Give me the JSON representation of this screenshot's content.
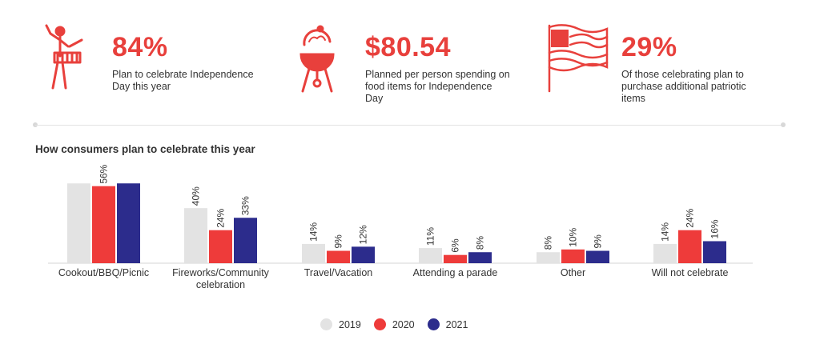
{
  "stats": [
    {
      "value": "84%",
      "desc_lines": [
        "Plan to celebrate Independence",
        "Day this year"
      ],
      "icon": "drummer-icon"
    },
    {
      "value": "$80.54",
      "desc_lines": [
        "Planned per person spending on",
        "food items for Independence",
        "Day"
      ],
      "icon": "grill-icon"
    },
    {
      "value": "29%",
      "desc_lines": [
        "Of those celebrating plan to",
        "purchase additional patriotic",
        "items"
      ],
      "icon": "flag-icon"
    }
  ],
  "colors": {
    "accent": "#e8403c",
    "y2019": "#e3e3e3",
    "y2020": "#ee3b3a",
    "y2021": "#2c2c8c"
  },
  "chart_data": {
    "type": "bar",
    "title": "How consumers plan to celebrate this year",
    "categories": [
      [
        "Cookout/BBQ/Picnic"
      ],
      [
        "Fireworks/Community",
        "celebration"
      ],
      [
        "Travel/Vacation"
      ],
      [
        "Attending a parade"
      ],
      [
        "Other"
      ],
      [
        "Will not celebrate"
      ]
    ],
    "series": [
      {
        "name": "2019",
        "values": [
          58,
          40,
          14,
          11,
          8,
          14
        ],
        "labels": [
          "",
          "40%",
          "14%",
          "11%",
          "8%",
          "14%"
        ]
      },
      {
        "name": "2020",
        "values": [
          56,
          24,
          9,
          6,
          10,
          24
        ],
        "labels": [
          "56%",
          "24%",
          "9%",
          "6%",
          "10%",
          "24%"
        ]
      },
      {
        "name": "2021",
        "values": [
          58,
          33,
          12,
          8,
          9,
          16
        ],
        "labels": [
          "",
          "33%",
          "12%",
          "8%",
          "9%",
          "16%"
        ]
      }
    ],
    "ylim": [
      0,
      60
    ],
    "legend": "bottom-center"
  }
}
